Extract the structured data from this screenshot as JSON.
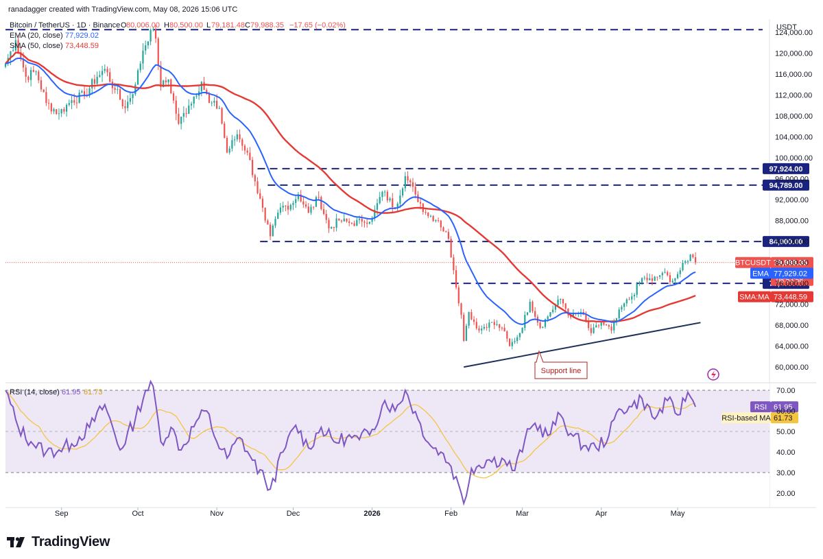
{
  "header": {
    "attribution": "ranadagger created with TradingView.com, May 08, 2026 15:06 UTC",
    "symbol_line": "Bitcoin / TetherUS · 1D · Binance",
    "ohlc": {
      "o_label": "O",
      "o": "80,006.00",
      "h_label": "H",
      "h": "80,500.00",
      "l_label": "L",
      "l": "79,181.48",
      "c_label": "C",
      "c": "79,988.35",
      "chg": "−17.65 (−0.02%)"
    },
    "ema_label": "EMA (20, close)",
    "ema_value": "77,929.02",
    "sma_label": "SMA (50, close)",
    "sma_value": "73,448.59",
    "rsi_label": "RSI (14, close)",
    "rsi_value": "61.95",
    "rsi_ma_value": "61.73"
  },
  "footer": {
    "brand": "TradingView"
  },
  "colors": {
    "price_up": "#26a69a",
    "price_down": "#ef5350",
    "ema": "#2962ff",
    "sma": "#e53935",
    "rsi": "#7e57c2",
    "rsi_ma": "#f5c542",
    "level": "#1a237e",
    "support": "#1f2f5a",
    "support_label_border": "#b71c1c",
    "support_label_text": "#b71c1c",
    "rsi_band": "#ede7f6"
  },
  "chart_data": [
    {
      "type": "candlestick",
      "title": "Bitcoin / TetherUS · 1D · Binance",
      "currency": "USDT",
      "ylim": [
        57000,
        126500
      ],
      "y_ticks": [
        "124,000.00",
        "120,000.00",
        "116,000.00",
        "112,000.00",
        "108,000.00",
        "104,000.00",
        "100,000.00",
        "96,000.00",
        "92,000.00",
        "88,000.00",
        "84,000.00",
        "80,000.00",
        "76,000.00",
        "72,000.00",
        "68,000.00",
        "64,000.00",
        "60,000.00"
      ],
      "x_ticks": [
        {
          "label": "Sep",
          "date": "2025-09-01"
        },
        {
          "label": "Oct",
          "date": "2025-10-01"
        },
        {
          "label": "Nov",
          "date": "2025-11-01"
        },
        {
          "label": "Dec",
          "date": "2025-12-01"
        },
        {
          "label": "2026",
          "date": "2026-01-01"
        },
        {
          "label": "Feb",
          "date": "2026-02-01"
        },
        {
          "label": "Mar",
          "date": "2026-03-01"
        },
        {
          "label": "Apr",
          "date": "2026-04-01"
        },
        {
          "label": "May",
          "date": "2026-05-01"
        }
      ],
      "x_range": [
        "2025-08-10",
        "2026-06-05"
      ],
      "close_anchors": [
        [
          "2025-08-10",
          118000
        ],
        [
          "2025-08-14",
          122500
        ],
        [
          "2025-08-18",
          115500
        ],
        [
          "2025-08-22",
          116500
        ],
        [
          "2025-08-26",
          110500
        ],
        [
          "2025-08-31",
          108500
        ],
        [
          "2025-09-05",
          111000
        ],
        [
          "2025-09-10",
          112000
        ],
        [
          "2025-09-15",
          115500
        ],
        [
          "2025-09-18",
          117000
        ],
        [
          "2025-09-22",
          113000
        ],
        [
          "2025-09-26",
          109500
        ],
        [
          "2025-09-30",
          114000
        ],
        [
          "2025-10-03",
          120500
        ],
        [
          "2025-10-06",
          124500
        ],
        [
          "2025-10-08",
          122800
        ],
        [
          "2025-10-10",
          113500
        ],
        [
          "2025-10-13",
          115000
        ],
        [
          "2025-10-17",
          106500
        ],
        [
          "2025-10-21",
          110000
        ],
        [
          "2025-10-26",
          114500
        ],
        [
          "2025-10-29",
          110500
        ],
        [
          "2025-11-02",
          109500
        ],
        [
          "2025-11-05",
          101000
        ],
        [
          "2025-11-09",
          104500
        ],
        [
          "2025-11-13",
          101000
        ],
        [
          "2025-11-16",
          95500
        ],
        [
          "2025-11-20",
          88000
        ],
        [
          "2025-11-22",
          85000
        ],
        [
          "2025-11-26",
          90500
        ],
        [
          "2025-11-30",
          91000
        ],
        [
          "2025-12-03",
          93000
        ],
        [
          "2025-12-07",
          89500
        ],
        [
          "2025-12-11",
          92500
        ],
        [
          "2025-12-15",
          86500
        ],
        [
          "2025-12-19",
          88000
        ],
        [
          "2025-12-24",
          87500
        ],
        [
          "2025-12-28",
          87800
        ],
        [
          "2026-01-01",
          88500
        ],
        [
          "2026-01-05",
          93500
        ],
        [
          "2026-01-10",
          90500
        ],
        [
          "2026-01-14",
          96500
        ],
        [
          "2026-01-18",
          93000
        ],
        [
          "2026-01-22",
          89500
        ],
        [
          "2026-01-27",
          88000
        ],
        [
          "2026-01-31",
          84500
        ],
        [
          "2026-02-02",
          78500
        ],
        [
          "2026-02-05",
          70000
        ],
        [
          "2026-02-06",
          65000
        ],
        [
          "2026-02-08",
          70500
        ],
        [
          "2026-02-12",
          67000
        ],
        [
          "2026-02-16",
          68500
        ],
        [
          "2026-02-21",
          67500
        ],
        [
          "2026-02-24",
          64000
        ],
        [
          "2026-02-28",
          66500
        ],
        [
          "2026-03-04",
          72500
        ],
        [
          "2026-03-08",
          67500
        ],
        [
          "2026-03-12",
          70500
        ],
        [
          "2026-03-16",
          73000
        ],
        [
          "2026-03-20",
          69500
        ],
        [
          "2026-03-24",
          70500
        ],
        [
          "2026-03-28",
          66500
        ],
        [
          "2026-04-01",
          68500
        ],
        [
          "2026-04-05",
          67000
        ],
        [
          "2026-04-09",
          71500
        ],
        [
          "2026-04-13",
          73500
        ],
        [
          "2026-04-17",
          77000
        ],
        [
          "2026-04-21",
          76500
        ],
        [
          "2026-04-25",
          78000
        ],
        [
          "2026-04-29",
          76500
        ],
        [
          "2026-05-02",
          78500
        ],
        [
          "2026-05-06",
          81500
        ],
        [
          "2026-05-08",
          79988.35
        ]
      ],
      "ema_20_last": 77929.02,
      "sma_50_last": 73448.59,
      "last_price_label": {
        "symbol": "BTCUSDT",
        "price": "79,988.35",
        "change": "−33.42%",
        "countdown": "08:53:58",
        "value": 79988.35
      },
      "ema_label": {
        "name": "EMA",
        "price": "77,929.02",
        "value": 77929.02
      },
      "sma_label": {
        "name": "SMA:MA",
        "price": "73,448.59",
        "value": 73448.59
      },
      "levels": [
        {
          "value": 124500,
          "label": "124,500",
          "from": "2025-08-10",
          "to": "2026-06-05",
          "tag": ""
        },
        {
          "value": 97924,
          "label": "97,924.00",
          "from": "2025-11-17",
          "to": "2026-06-05",
          "tag": "97,924.00"
        },
        {
          "value": 94789,
          "label": "94,789.00",
          "from": "2025-11-21",
          "to": "2026-06-05",
          "tag": "94,789.00"
        },
        {
          "value": 84000,
          "label": "84,000.00",
          "from": "2025-11-18",
          "to": "2026-06-05",
          "tag": "84,000.00"
        },
        {
          "value": 76000,
          "label": "76,000.00",
          "from": "2026-02-01",
          "to": "2026-06-05",
          "tag": "76,000.00"
        }
      ],
      "support_line": {
        "from": [
          "2026-02-06",
          60000
        ],
        "to": [
          "2026-05-10",
          68500
        ],
        "annotation": "Support line"
      }
    },
    {
      "type": "line",
      "title": "RSI (14, close)",
      "ylim": [
        13,
        73
      ],
      "y_ticks": [
        "70.00",
        "60.00",
        "50.00",
        "40.00",
        "30.00",
        "20.00"
      ],
      "band": [
        30,
        70
      ],
      "rsi_anchors": [
        [
          "2025-08-10",
          70
        ],
        [
          "2025-08-15",
          52
        ],
        [
          "2025-08-20",
          45
        ],
        [
          "2025-08-26",
          40
        ],
        [
          "2025-08-31",
          41
        ],
        [
          "2025-09-05",
          44
        ],
        [
          "2025-09-12",
          52
        ],
        [
          "2025-09-18",
          63
        ],
        [
          "2025-09-24",
          41
        ],
        [
          "2025-09-30",
          56
        ],
        [
          "2025-10-04",
          70
        ],
        [
          "2025-10-07",
          72
        ],
        [
          "2025-10-10",
          45
        ],
        [
          "2025-10-14",
          52
        ],
        [
          "2025-10-18",
          41
        ],
        [
          "2025-10-24",
          55
        ],
        [
          "2025-10-28",
          60
        ],
        [
          "2025-11-01",
          45
        ],
        [
          "2025-11-05",
          37
        ],
        [
          "2025-11-10",
          47
        ],
        [
          "2025-11-15",
          36
        ],
        [
          "2025-11-20",
          26
        ],
        [
          "2025-11-22",
          22
        ],
        [
          "2025-11-27",
          40
        ],
        [
          "2025-12-02",
          53
        ],
        [
          "2025-12-07",
          42
        ],
        [
          "2025-12-12",
          52
        ],
        [
          "2025-12-17",
          45
        ],
        [
          "2025-12-22",
          47
        ],
        [
          "2025-12-27",
          46
        ],
        [
          "2026-01-01",
          51
        ],
        [
          "2026-01-06",
          65
        ],
        [
          "2026-01-10",
          60
        ],
        [
          "2026-01-14",
          70
        ],
        [
          "2026-01-19",
          56
        ],
        [
          "2026-01-24",
          43
        ],
        [
          "2026-01-28",
          40
        ],
        [
          "2026-02-01",
          33
        ],
        [
          "2026-02-05",
          20
        ],
        [
          "2026-02-06",
          15
        ],
        [
          "2026-02-09",
          32
        ],
        [
          "2026-02-15",
          36
        ],
        [
          "2026-02-22",
          36
        ],
        [
          "2026-02-26",
          31
        ],
        [
          "2026-03-02",
          46
        ],
        [
          "2026-03-06",
          54
        ],
        [
          "2026-03-11",
          48
        ],
        [
          "2026-03-16",
          58
        ],
        [
          "2026-03-20",
          49
        ],
        [
          "2026-03-25",
          43
        ],
        [
          "2026-03-30",
          42
        ],
        [
          "2026-04-04",
          48
        ],
        [
          "2026-04-08",
          61
        ],
        [
          "2026-04-13",
          62
        ],
        [
          "2026-04-17",
          66
        ],
        [
          "2026-04-22",
          56
        ],
        [
          "2026-04-27",
          65
        ],
        [
          "2026-05-01",
          58
        ],
        [
          "2026-05-05",
          69
        ],
        [
          "2026-05-08",
          61.95
        ]
      ],
      "rsi_ma_last": 61.73,
      "rsi_tag": {
        "name": "RSI",
        "value": "61.95"
      },
      "rsi_ma_tag": {
        "name": "RSI-based MA",
        "value": "61.73"
      }
    }
  ]
}
